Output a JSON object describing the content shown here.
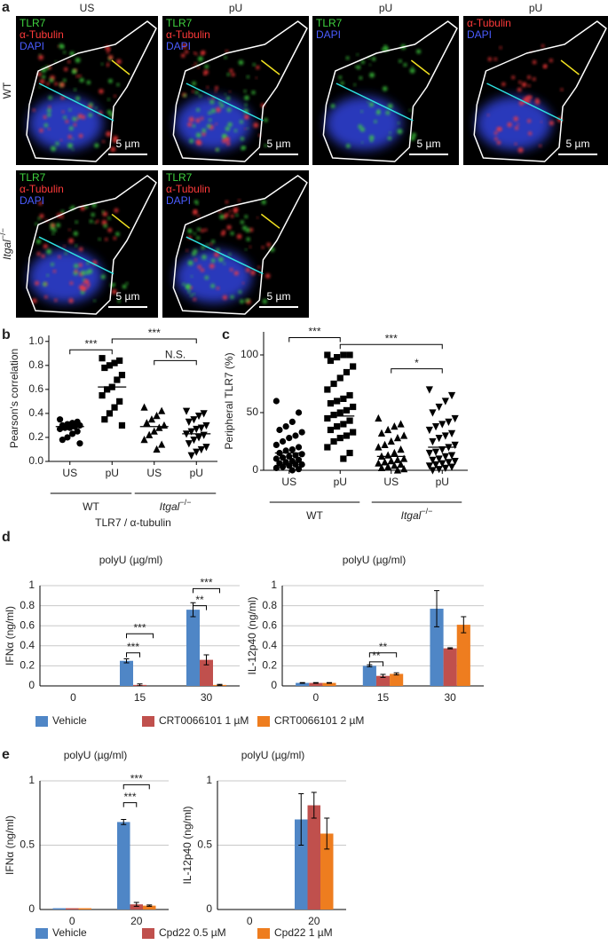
{
  "panel_labels": [
    "a",
    "b",
    "c",
    "d",
    "e"
  ],
  "microscopy": {
    "columns": [
      "US",
      "pU",
      "pU",
      "pU"
    ],
    "stain_colors": {
      "TLR7": "#3fd23f",
      "α-Tubulin": "#ff3a3a",
      "DAPI": "#4a5cff"
    },
    "rows": [
      {
        "label": "WT",
        "panels": [
          {
            "stains": [
              "TLR7",
              "α-Tubulin",
              "DAPI"
            ],
            "scale_bar": "5 µm"
          },
          {
            "stains": [
              "TLR7",
              "α-Tubulin",
              "DAPI"
            ],
            "scale_bar": "5 µm"
          },
          {
            "stains": [
              "TLR7",
              "DAPI"
            ],
            "scale_bar": "5 µm"
          },
          {
            "stains": [
              "α-Tubulin",
              "DAPI"
            ],
            "scale_bar": "5 µm"
          }
        ]
      },
      {
        "label": "Itgal",
        "label_sup": "−/−",
        "panels": [
          {
            "stains": [
              "TLR7",
              "α-Tubulin",
              "DAPI"
            ],
            "scale_bar": "5 µm"
          },
          {
            "stains": [
              "TLR7",
              "α-Tubulin",
              "DAPI"
            ],
            "scale_bar": "5 µm"
          }
        ]
      }
    ]
  },
  "chart_data": [
    {
      "type": "strip",
      "ylabel": "Pearson's correlation",
      "xlabel": "TLR7 / α-tubulin",
      "categories": [
        "US",
        "pU",
        "US",
        "pU"
      ],
      "markers": [
        "circle",
        "square",
        "triangle",
        "triangle-down"
      ],
      "points": [
        [
          0.35,
          0.33,
          0.32,
          0.31,
          0.3,
          0.3,
          0.29,
          0.28,
          0.28,
          0.27,
          0.25,
          0.23,
          0.2,
          0.18,
          0.15
        ],
        [
          0.86,
          0.84,
          0.82,
          0.8,
          0.78,
          0.72,
          0.68,
          0.62,
          0.6,
          0.55,
          0.5,
          0.45,
          0.4,
          0.35,
          0.3
        ],
        [
          0.45,
          0.42,
          0.38,
          0.35,
          0.32,
          0.3,
          0.28,
          0.25,
          0.22,
          0.18,
          0.14,
          0.1
        ],
        [
          0.42,
          0.4,
          0.38,
          0.35,
          0.33,
          0.3,
          0.28,
          0.27,
          0.25,
          0.23,
          0.22,
          0.2,
          0.18,
          0.15,
          0.12,
          0.1,
          0.08,
          0.05
        ]
      ],
      "means": [
        0.29,
        0.62,
        0.29,
        0.23
      ],
      "groups": [
        {
          "label": "WT",
          "span": [
            0,
            1
          ]
        },
        {
          "label": "Itgal",
          "sup": "−/−",
          "span": [
            2,
            3
          ]
        }
      ],
      "ylim": [
        0,
        1.05
      ],
      "yticks": [
        {
          "value": 0,
          "label": "0.0"
        },
        0.2,
        0.4,
        0.6,
        0.8,
        {
          "value": 1,
          "label": "1.0"
        }
      ],
      "annotations": [
        {
          "label": "***",
          "span": [
            0,
            1
          ],
          "y": 0.93
        },
        {
          "label": "***",
          "span": [
            1,
            3
          ],
          "y": 1.02
        },
        {
          "label": "N.S.",
          "span": [
            2,
            3
          ],
          "y": 0.84
        }
      ]
    },
    {
      "type": "strip",
      "ylabel": "Peripheral TLR7 (%)",
      "categories": [
        "US",
        "pU",
        "US",
        "pU"
      ],
      "markers": [
        "circle",
        "square",
        "triangle",
        "triangle-down"
      ],
      "points": [
        [
          60,
          50,
          42,
          38,
          35,
          33,
          30,
          28,
          25,
          22,
          20,
          18,
          17,
          15,
          14,
          13,
          12,
          11,
          10,
          9,
          8,
          7,
          6,
          5,
          5,
          4,
          3,
          2,
          1,
          0
        ],
        [
          100,
          100,
          100,
          98,
          95,
          90,
          85,
          80,
          75,
          70,
          65,
          62,
          60,
          58,
          55,
          52,
          50,
          48,
          45,
          43,
          40,
          38,
          35,
          33,
          30,
          28,
          25,
          20,
          15,
          10
        ],
        [
          45,
          40,
          38,
          35,
          32,
          30,
          28,
          25,
          22,
          20,
          18,
          15,
          13,
          12,
          10,
          9,
          8,
          7,
          6,
          5,
          4,
          3,
          2,
          1,
          0
        ],
        [
          70,
          65,
          60,
          55,
          50,
          45,
          42,
          40,
          38,
          35,
          32,
          30,
          28,
          25,
          22,
          20,
          18,
          16,
          15,
          13,
          12,
          10,
          9,
          8,
          7,
          6,
          5,
          4,
          3,
          2,
          1,
          0
        ]
      ],
      "means": [
        15,
        47,
        12,
        20
      ],
      "groups": [
        {
          "label": "WT",
          "span": [
            0,
            1
          ]
        },
        {
          "label": "Itgal",
          "sup": "−/−",
          "span": [
            2,
            3
          ]
        }
      ],
      "ylim": [
        0,
        120
      ],
      "yticks": [
        0,
        50,
        100
      ],
      "annotations": [
        {
          "label": "***",
          "span": [
            0,
            1
          ],
          "y": 115
        },
        {
          "label": "***",
          "span": [
            1,
            3
          ],
          "y": 109
        },
        {
          "label": "*",
          "span": [
            2,
            3
          ],
          "y": 88
        }
      ]
    },
    {
      "type": "bar",
      "title": "polyU (µg/ml)",
      "ylabel": "IFNα (ng/ml)",
      "categories": [
        "0",
        "15",
        "30"
      ],
      "series": [
        {
          "name": "Vehicle",
          "color": "#4f86c6",
          "values": [
            0,
            0.25,
            0.76
          ],
          "errors": [
            0,
            0.02,
            0.07
          ]
        },
        {
          "name": "CRT0066101 1 µM",
          "color": "#c0504d",
          "values": [
            0,
            0.01,
            0.26
          ],
          "errors": [
            0,
            0.01,
            0.05
          ]
        },
        {
          "name": "CRT0066101 2 µM",
          "color": "#ee7d1f",
          "values": [
            0,
            0,
            0.01
          ],
          "errors": [
            0,
            0,
            0.005
          ]
        }
      ],
      "ylim": [
        0,
        1
      ],
      "yticks": [
        0,
        0.2,
        0.4,
        0.6,
        0.8,
        1
      ],
      "grid": true,
      "annotations": [
        {
          "label": "***",
          "category": 1,
          "series": [
            0,
            2
          ],
          "y": 0.52
        },
        {
          "label": "***",
          "category": 1,
          "series": [
            0,
            1
          ],
          "y": 0.33
        },
        {
          "label": "***",
          "category": 2,
          "series": [
            0,
            2
          ],
          "y": 0.97
        },
        {
          "label": "**",
          "category": 2,
          "series": [
            0,
            1
          ],
          "y": 0.8
        }
      ]
    },
    {
      "type": "bar",
      "title": "polyU (µg/ml)",
      "ylabel": "IL-12p40 (ng/ml)",
      "categories": [
        "0",
        "15",
        "30"
      ],
      "series": [
        {
          "color": "#4f86c6",
          "values": [
            0.03,
            0.2,
            0.77
          ],
          "errors": [
            0.003,
            0.01,
            0.18
          ]
        },
        {
          "color": "#c0504d",
          "values": [
            0.03,
            0.1,
            0.375
          ],
          "errors": [
            0.003,
            0.015,
            0.005
          ]
        },
        {
          "color": "#ee7d1f",
          "values": [
            0.03,
            0.12,
            0.61
          ],
          "errors": [
            0.003,
            0.01,
            0.08
          ]
        }
      ],
      "ylim": [
        0,
        1
      ],
      "yticks": [
        0,
        0.2,
        0.4,
        0.6,
        0.8,
        1
      ],
      "grid": true,
      "annotations": [
        {
          "label": "**",
          "category": 1,
          "series": [
            0,
            2
          ],
          "y": 0.33
        },
        {
          "label": "**",
          "category": 1,
          "series": [
            0,
            1
          ],
          "y": 0.24
        }
      ]
    },
    {
      "type": "bar",
      "title": "polyU (µg/ml)",
      "ylabel": "IFNα (ng/ml)",
      "categories": [
        "0",
        "20"
      ],
      "series": [
        {
          "name": "Vehicle",
          "color": "#4f86c6",
          "values": [
            0.01,
            0.68
          ],
          "errors": [
            0,
            0.02
          ]
        },
        {
          "name": "Cpd22 0.5 µM",
          "color": "#c0504d",
          "values": [
            0.01,
            0.04
          ],
          "errors": [
            0,
            0.015
          ]
        },
        {
          "name": "Cpd22 1 µM",
          "color": "#ee7d1f",
          "values": [
            0.01,
            0.03
          ],
          "errors": [
            0,
            0.005
          ]
        }
      ],
      "ylim": [
        0,
        1
      ],
      "yticks": [
        0,
        0.5,
        1
      ],
      "grid": true,
      "annotations": [
        {
          "label": "***",
          "category": 1,
          "series": [
            0,
            2
          ],
          "y": 0.97
        },
        {
          "label": "***",
          "category": 1,
          "series": [
            0,
            1
          ],
          "y": 0.83
        }
      ]
    },
    {
      "type": "bar",
      "title": "polyU (µg/ml)",
      "ylabel": "IL-12p40 (ng/ml)",
      "categories": [
        "0",
        "20"
      ],
      "series": [
        {
          "color": "#4f86c6",
          "values": [
            0,
            0.7
          ],
          "errors": [
            0,
            0.2
          ]
        },
        {
          "color": "#c0504d",
          "values": [
            0,
            0.81
          ],
          "errors": [
            0,
            0.1
          ]
        },
        {
          "color": "#ee7d1f",
          "values": [
            0,
            0.59
          ],
          "errors": [
            0,
            0.12
          ]
        }
      ],
      "ylim": [
        0,
        1
      ],
      "yticks": [
        0,
        0.5,
        1
      ],
      "grid": true,
      "annotations": []
    }
  ]
}
